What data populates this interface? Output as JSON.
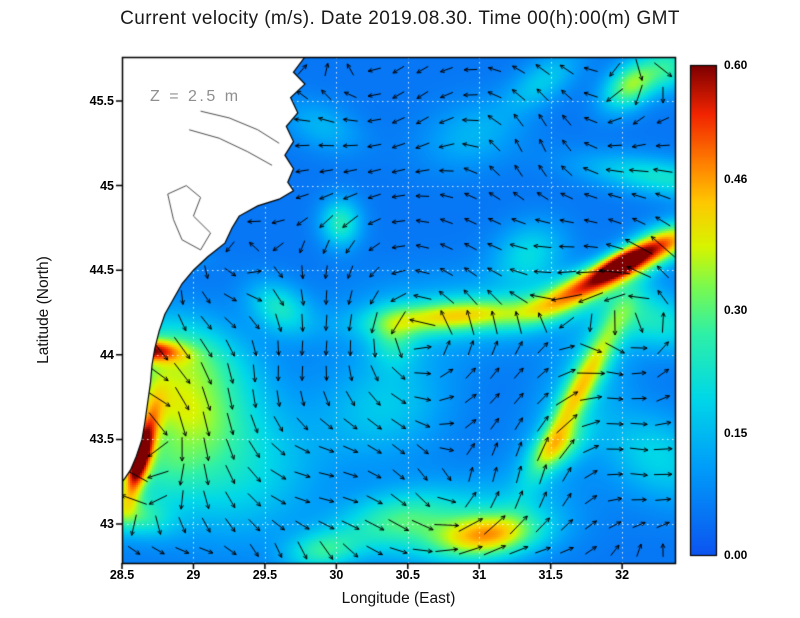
{
  "figure": {
    "title": "Current velocity (m/s). Date 2019.08.30. Time 00(h):00(m) GMT",
    "depth_annotation": "Z = 2.5 m",
    "xlabel": "Longitude (East)",
    "ylabel": "Latitude (North)"
  },
  "chart_data": {
    "type": "heatmap",
    "subtype": "velocity-field-with-quiver",
    "title": "Current velocity (m/s). Date 2019.08.30. Time 00(h):00(m) GMT",
    "xlabel": "Longitude (East)",
    "ylabel": "Latitude (North)",
    "units": "m/s",
    "depth_annotation": "Z = 2.5 m",
    "xlim": [
      28.5,
      32.37
    ],
    "ylim": [
      42.77,
      45.76
    ],
    "xticks": [
      28.5,
      29,
      29.5,
      30,
      30.5,
      31,
      31.5,
      32
    ],
    "xtick_labels": [
      "28.5",
      "29",
      "29.5",
      "30",
      "30.5",
      "31",
      "31.5",
      "32"
    ],
    "yticks": [
      43,
      43.5,
      44,
      44.5,
      45,
      45.5
    ],
    "ytick_labels": [
      "43",
      "43.5",
      "44",
      "44.5",
      "45",
      "45.5"
    ],
    "grid": "dotted-white",
    "colorbar": {
      "min": 0.0,
      "max": 0.6,
      "ticks": [
        0.0,
        0.15,
        0.3,
        0.46,
        0.6
      ],
      "tick_labels": [
        "0.00",
        "0.15",
        "0.30",
        "0.46",
        "0.60"
      ],
      "position": "right"
    },
    "base_value": 0.05,
    "colormap_stops": [
      {
        "t": 0.0,
        "color": "#0d55f0"
      },
      {
        "t": 0.18,
        "color": "#009efa"
      },
      {
        "t": 0.32,
        "color": "#00d8e8"
      },
      {
        "t": 0.45,
        "color": "#2ef0a8"
      },
      {
        "t": 0.55,
        "color": "#7dfa4d"
      },
      {
        "t": 0.63,
        "color": "#d8f500"
      },
      {
        "t": 0.72,
        "color": "#ffc800"
      },
      {
        "t": 0.8,
        "color": "#ff8000"
      },
      {
        "t": 0.9,
        "color": "#f22500"
      },
      {
        "t": 1.0,
        "color": "#7e0000"
      }
    ],
    "hotspots": [
      {
        "lon": 28.63,
        "lat": 43.4,
        "amp": 0.45,
        "sx": 0.2,
        "sy": 0.055,
        "rot": 1.25
      },
      {
        "lon": 28.62,
        "lat": 43.42,
        "amp": 0.14,
        "sx": 0.08,
        "sy": 0.035,
        "rot": 1.25
      },
      {
        "lon": 28.85,
        "lat": 43.45,
        "amp": 0.2,
        "sx": 0.38,
        "sy": 0.22,
        "rot": 0.5
      },
      {
        "lon": 28.72,
        "lat": 43.75,
        "amp": 0.14,
        "sx": 0.12,
        "sy": 0.3,
        "rot": 1.3
      },
      {
        "lon": 28.67,
        "lat": 44.03,
        "amp": 0.34,
        "sx": 0.045,
        "sy": 0.16,
        "rot": 1.5
      },
      {
        "lon": 28.8,
        "lat": 44.0,
        "amp": 0.13,
        "sx": 0.15,
        "sy": 0.3,
        "rot": 1.4
      },
      {
        "lon": 28.63,
        "lat": 44.6,
        "amp": 0.2,
        "sx": 0.05,
        "sy": 0.22,
        "rot": 1.5
      },
      {
        "lon": 31.95,
        "lat": 44.5,
        "amp": 0.46,
        "sx": 0.3,
        "sy": 0.065,
        "rot": 0.4
      },
      {
        "lon": 32.0,
        "lat": 44.55,
        "amp": 0.2,
        "sx": 0.13,
        "sy": 0.045,
        "rot": 0.4
      },
      {
        "lon": 31.55,
        "lat": 44.32,
        "amp": 0.16,
        "sx": 0.22,
        "sy": 0.08,
        "rot": 0.35
      },
      {
        "lon": 32.33,
        "lat": 44.67,
        "amp": 0.24,
        "sx": 0.18,
        "sy": 0.08,
        "rot": 0.25
      },
      {
        "lon": 32.28,
        "lat": 45.05,
        "amp": 0.17,
        "sx": 0.08,
        "sy": 0.4,
        "rot": 1.45
      },
      {
        "lon": 32.07,
        "lat": 45.6,
        "amp": 0.29,
        "sx": 0.15,
        "sy": 0.09,
        "rot": 0.5
      },
      {
        "lon": 32.35,
        "lat": 45.7,
        "amp": 0.17,
        "sx": 0.12,
        "sy": 0.1,
        "rot": 0.3
      },
      {
        "lon": 30.85,
        "lat": 44.23,
        "amp": 0.28,
        "sx": 0.4,
        "sy": 0.07,
        "rot": 0.06
      },
      {
        "lon": 30.85,
        "lat": 44.25,
        "amp": 0.09,
        "sx": 0.6,
        "sy": 0.17,
        "rot": 0.05
      },
      {
        "lon": 30.4,
        "lat": 44.1,
        "amp": 0.13,
        "sx": 0.12,
        "sy": 0.12,
        "rot": 0.8
      },
      {
        "lon": 31.72,
        "lat": 43.82,
        "amp": 0.28,
        "sx": 0.38,
        "sy": 0.07,
        "rot": 1.0
      },
      {
        "lon": 31.72,
        "lat": 43.82,
        "amp": 0.1,
        "sx": 0.5,
        "sy": 0.18,
        "rot": 1.0
      },
      {
        "lon": 31.55,
        "lat": 43.45,
        "amp": 0.18,
        "sx": 0.15,
        "sy": 0.08,
        "rot": 0.5
      },
      {
        "lon": 31.05,
        "lat": 42.93,
        "amp": 0.3,
        "sx": 0.26,
        "sy": 0.09,
        "rot": 0.1
      },
      {
        "lon": 30.95,
        "lat": 43.0,
        "amp": 0.12,
        "sx": 0.45,
        "sy": 0.18,
        "rot": 0.1
      },
      {
        "lon": 30.4,
        "lat": 43.02,
        "amp": 0.18,
        "sx": 0.3,
        "sy": 0.12,
        "rot": 0.15
      },
      {
        "lon": 29.9,
        "lat": 42.84,
        "amp": 0.18,
        "sx": 0.18,
        "sy": 0.08,
        "rot": 0.1
      },
      {
        "lon": 30.03,
        "lat": 44.78,
        "amp": 0.2,
        "sx": 0.1,
        "sy": 0.1,
        "rot": 0.0
      },
      {
        "lon": 29.6,
        "lat": 44.28,
        "amp": 0.17,
        "sx": 0.1,
        "sy": 0.16,
        "rot": 1.2
      },
      {
        "lon": 29.0,
        "lat": 43.95,
        "amp": 0.14,
        "sx": 0.2,
        "sy": 0.3,
        "rot": 1.3
      },
      {
        "lon": 29.35,
        "lat": 43.3,
        "amp": 0.14,
        "sx": 0.38,
        "sy": 0.28,
        "rot": 0.2
      },
      {
        "lon": 32.25,
        "lat": 44.2,
        "amp": 0.16,
        "sx": 0.12,
        "sy": 0.25,
        "rot": 1.3
      },
      {
        "lon": 32.25,
        "lat": 43.4,
        "amp": 0.14,
        "sx": 0.18,
        "sy": 0.3,
        "rot": 1.2
      },
      {
        "lon": 30.35,
        "lat": 43.7,
        "amp": 0.12,
        "sx": 0.32,
        "sy": 0.22,
        "rot": 0.2
      },
      {
        "lon": 31.35,
        "lat": 44.6,
        "amp": 0.14,
        "sx": 0.18,
        "sy": 0.13,
        "rot": 0.3
      },
      {
        "lon": 30.95,
        "lat": 45.3,
        "amp": 0.09,
        "sx": 0.25,
        "sy": 0.14,
        "rot": 0.2
      },
      {
        "lon": 31.45,
        "lat": 45.62,
        "amp": 0.12,
        "sx": 0.2,
        "sy": 0.09,
        "rot": 0.5
      },
      {
        "lon": 28.58,
        "lat": 43.05,
        "amp": 0.16,
        "sx": 0.08,
        "sy": 0.18,
        "rot": 1.4
      },
      {
        "lon": 29.9,
        "lat": 45.35,
        "amp": 0.09,
        "sx": 0.1,
        "sy": 0.2,
        "rot": 1.3
      }
    ],
    "gyres": [
      {
        "lon": 30.6,
        "lat": 44.1,
        "s": 1.0,
        "R": 1.4
      },
      {
        "lon": 32.2,
        "lat": 44.2,
        "s": 0.9,
        "R": 0.8
      },
      {
        "lon": 30.8,
        "lat": 43.15,
        "s": 0.5,
        "R": 0.5
      },
      {
        "lon": 29.3,
        "lat": 44.6,
        "s": 0.5,
        "R": 0.6
      }
    ],
    "arrow_grid": {
      "nx": 23,
      "ny": 20,
      "color": "#000000"
    },
    "land_polygon": [
      [
        28.5,
        45.76
      ],
      [
        29.78,
        45.76
      ],
      [
        29.7,
        45.67
      ],
      [
        29.78,
        45.6
      ],
      [
        29.68,
        45.52
      ],
      [
        29.73,
        45.43
      ],
      [
        29.65,
        45.35
      ],
      [
        29.7,
        45.26
      ],
      [
        29.64,
        45.18
      ],
      [
        29.7,
        45.1
      ],
      [
        29.66,
        45.02
      ],
      [
        29.7,
        44.97
      ],
      [
        29.6,
        44.92
      ],
      [
        29.45,
        44.88
      ],
      [
        29.32,
        44.82
      ],
      [
        29.27,
        44.75
      ],
      [
        29.22,
        44.66
      ],
      [
        29.1,
        44.58
      ],
      [
        29.0,
        44.5
      ],
      [
        28.92,
        44.42
      ],
      [
        28.86,
        44.33
      ],
      [
        28.8,
        44.24
      ],
      [
        28.76,
        44.14
      ],
      [
        28.73,
        44.04
      ],
      [
        28.71,
        43.94
      ],
      [
        28.7,
        43.84
      ],
      [
        28.68,
        43.72
      ],
      [
        28.66,
        43.6
      ],
      [
        28.64,
        43.5
      ],
      [
        28.6,
        43.4
      ],
      [
        28.56,
        43.32
      ],
      [
        28.52,
        43.27
      ],
      [
        28.5,
        43.25
      ]
    ],
    "lakes": [
      {
        "closed": false,
        "pts": [
          [
            29.05,
            45.44
          ],
          [
            29.25,
            45.4
          ],
          [
            29.45,
            45.33
          ],
          [
            29.6,
            45.25
          ]
        ]
      },
      {
        "closed": false,
        "pts": [
          [
            28.97,
            45.33
          ],
          [
            29.18,
            45.28
          ],
          [
            29.38,
            45.2
          ],
          [
            29.55,
            45.12
          ]
        ]
      },
      {
        "closed": true,
        "pts": [
          [
            28.82,
            44.95
          ],
          [
            28.95,
            45.0
          ],
          [
            29.05,
            44.93
          ],
          [
            29.0,
            44.82
          ],
          [
            29.12,
            44.72
          ],
          [
            29.05,
            44.62
          ],
          [
            28.92,
            44.68
          ],
          [
            28.86,
            44.8
          ]
        ]
      }
    ]
  }
}
